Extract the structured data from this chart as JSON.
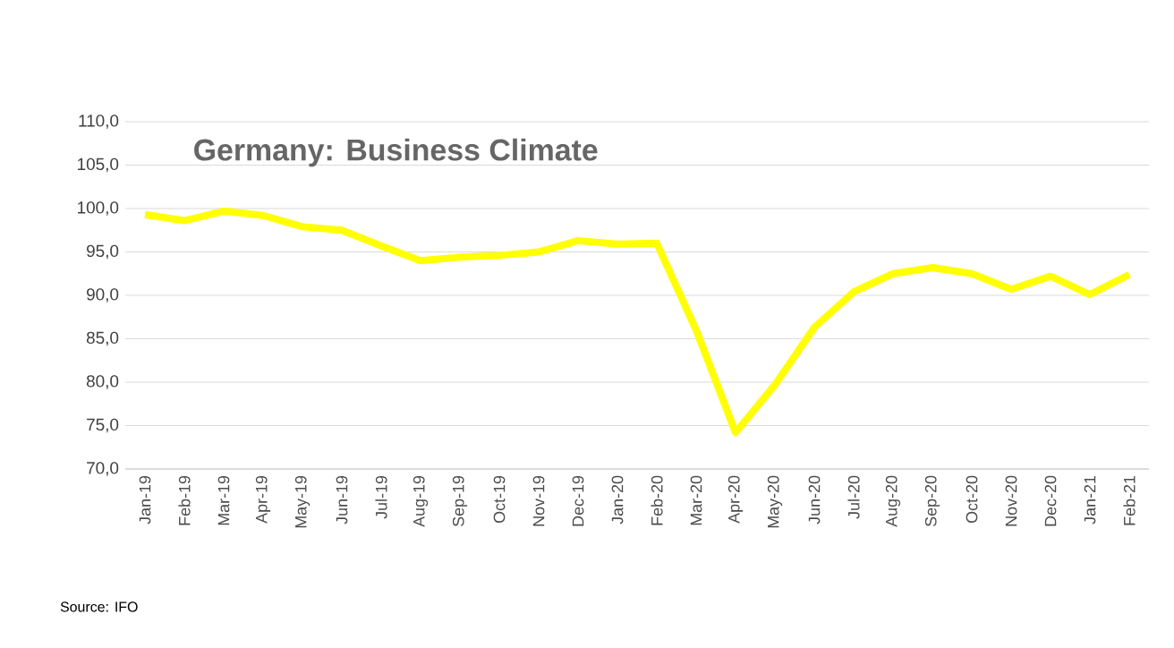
{
  "chart_data": {
    "type": "line",
    "title": "Germany: Business Climate",
    "categories": [
      "Jan-19",
      "Feb-19",
      "Mar-19",
      "Apr-19",
      "May-19",
      "Jun-19",
      "Jul-19",
      "Aug-19",
      "Sep-19",
      "Oct-19",
      "Nov-19",
      "Dec-19",
      "Jan-20",
      "Feb-20",
      "Mar-20",
      "Apr-20",
      "May-20",
      "Jun-20",
      "Jul-20",
      "Aug-20",
      "Sep-20",
      "Oct-20",
      "Nov-20",
      "Dec-20",
      "Jan-21",
      "Feb-21"
    ],
    "series": [
      {
        "color": "#ffff00",
        "values": [
          99.3,
          98.6,
          99.7,
          99.2,
          97.9,
          97.5,
          95.7,
          94.0,
          94.4,
          94.6,
          95.0,
          96.3,
          95.9,
          96.0,
          86.0,
          74.2,
          79.7,
          86.3,
          90.4,
          92.5,
          93.2,
          92.5,
          90.7,
          92.2,
          90.1,
          92.4
        ]
      }
    ],
    "ylim": [
      70,
      110
    ],
    "yticks": [
      {
        "value": 70,
        "label": "70,0"
      },
      {
        "value": 75,
        "label": "75,0"
      },
      {
        "value": 80,
        "label": "80,0"
      },
      {
        "value": 85,
        "label": "85,0"
      },
      {
        "value": 90,
        "label": "90,0"
      },
      {
        "value": 95,
        "label": "95,0"
      },
      {
        "value": 100,
        "label": "100,0"
      },
      {
        "value": 105,
        "label": "105,0"
      },
      {
        "value": 110,
        "label": "110,0"
      }
    ],
    "grid": "y",
    "legend": false,
    "marker": "none",
    "line_style": "solid",
    "annotations": [
      "Source: IFO"
    ]
  }
}
